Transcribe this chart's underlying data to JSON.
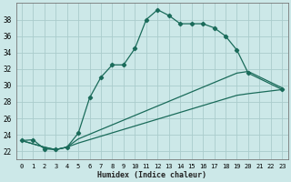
{
  "title": "",
  "xlabel": "Humidex (Indice chaleur)",
  "bg_color": "#cce8e8",
  "grid_color": "#aacccc",
  "line_color": "#1a6b5a",
  "xlim": [
    -0.5,
    23.5
  ],
  "ylim": [
    21.0,
    40.0
  ],
  "xticks": [
    0,
    1,
    2,
    3,
    4,
    5,
    6,
    7,
    8,
    9,
    10,
    11,
    12,
    13,
    14,
    15,
    16,
    17,
    18,
    19,
    20,
    21,
    22,
    23
  ],
  "yticks": [
    22,
    24,
    26,
    28,
    30,
    32,
    34,
    36,
    38
  ],
  "curve1_x": [
    0,
    1,
    2,
    3,
    4,
    5,
    6,
    7,
    8,
    9,
    10,
    11,
    12,
    13,
    14,
    15,
    16,
    17,
    18,
    19,
    20,
    23
  ],
  "curve1_y": [
    23.3,
    23.4,
    22.3,
    22.2,
    22.5,
    24.2,
    28.5,
    31.0,
    32.5,
    32.5,
    34.5,
    38.0,
    39.2,
    38.5,
    37.5,
    37.5,
    37.5,
    37.0,
    36.0,
    34.3,
    31.5,
    29.5
  ],
  "curve2_x": [
    0,
    2,
    3,
    4,
    5,
    19,
    20,
    23
  ],
  "curve2_y": [
    23.3,
    22.5,
    22.2,
    22.5,
    23.5,
    31.5,
    31.7,
    29.7
  ],
  "curve3_x": [
    0,
    2,
    3,
    4,
    5,
    19,
    20,
    23
  ],
  "curve3_y": [
    23.3,
    22.5,
    22.2,
    22.5,
    23.0,
    28.8,
    29.0,
    29.5
  ],
  "xlabel_fontsize": 6,
  "tick_fontsize": 5,
  "linewidth": 0.9,
  "marker_size": 2.2
}
